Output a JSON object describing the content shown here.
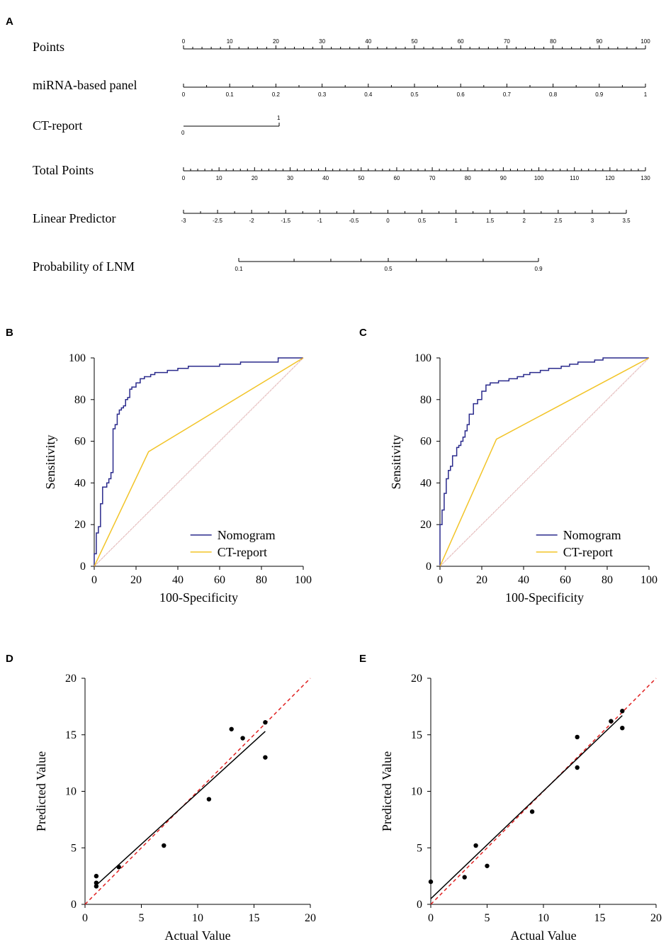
{
  "chart_data": [
    {
      "panel": "A",
      "type": "nomogram",
      "scales": [
        {
          "label": "Points",
          "ticks": [
            "0",
            "10",
            "20",
            "30",
            "40",
            "50",
            "60",
            "70",
            "80",
            "90",
            "100"
          ]
        },
        {
          "label": "miRNA-based panel",
          "ticks": [
            "0",
            "0.1",
            "0.2",
            "0.3",
            "0.4",
            "0.5",
            "0.6",
            "0.7",
            "0.8",
            "0.9",
            "1"
          ]
        },
        {
          "label": "CT-report",
          "ticks": [
            "0",
            "1"
          ]
        },
        {
          "label": "Total Points",
          "ticks": [
            "0",
            "10",
            "20",
            "30",
            "40",
            "50",
            "60",
            "70",
            "80",
            "90",
            "100",
            "110",
            "120",
            "130"
          ]
        },
        {
          "label": "Linear Predictor",
          "ticks": [
            "-3",
            "-2.5",
            "-2",
            "-1.5",
            "-1",
            "-0.5",
            "0",
            "0.5",
            "1",
            "1.5",
            "2",
            "2.5",
            "3",
            "3.5"
          ]
        },
        {
          "label": "Probability of LNM",
          "ticks": [
            "0.1",
            "0.5",
            "0.9"
          ]
        }
      ]
    },
    {
      "panel": "B",
      "type": "line",
      "xlabel": "100-Specificity",
      "ylabel": "Sensitivity",
      "xlim": [
        0,
        100
      ],
      "ylim": [
        0,
        100
      ],
      "xticks": [
        "0",
        "20",
        "40",
        "60",
        "80",
        "100"
      ],
      "yticks": [
        "0",
        "20",
        "40",
        "60",
        "80",
        "100"
      ],
      "legend_position": "bottom-right",
      "series": [
        {
          "name": "Nomogram",
          "color": "#2a2a8c",
          "x": [
            0,
            0,
            1,
            1,
            2,
            2,
            3,
            3,
            4,
            4,
            6,
            6,
            7,
            7,
            8,
            8,
            9,
            9,
            10,
            10,
            11,
            11,
            12,
            12,
            13,
            13,
            14,
            14,
            15,
            15,
            16,
            16,
            17,
            17,
            18,
            18,
            20,
            20,
            22,
            22,
            24,
            24,
            25,
            25,
            27,
            27,
            29,
            29,
            31,
            31,
            35,
            35,
            40,
            40,
            45,
            45,
            48,
            48,
            60,
            60,
            70,
            70,
            88,
            88,
            100
          ],
          "y": [
            0,
            6,
            6,
            16,
            16,
            19,
            19,
            30,
            30,
            38,
            38,
            40,
            40,
            42,
            42,
            45,
            45,
            66,
            66,
            68,
            68,
            73,
            73,
            75,
            75,
            76,
            76,
            77,
            77,
            80,
            80,
            81,
            81,
            85,
            85,
            86,
            86,
            88,
            88,
            90,
            90,
            91,
            91,
            91,
            91,
            92,
            92,
            93,
            93,
            93,
            93,
            94,
            94,
            95,
            95,
            96,
            96,
            96,
            96,
            97,
            97,
            98,
            98,
            100,
            100
          ]
        },
        {
          "name": "CT-report",
          "color": "#f2c428",
          "x": [
            0,
            26,
            100
          ],
          "y": [
            0,
            55,
            100
          ]
        },
        {
          "name": "Reference",
          "color": "#c06060",
          "x": [
            0,
            100
          ],
          "y": [
            0,
            100
          ]
        }
      ]
    },
    {
      "panel": "C",
      "type": "line",
      "xlabel": "100-Specificity",
      "ylabel": "Sensitivity",
      "xlim": [
        0,
        100
      ],
      "ylim": [
        0,
        100
      ],
      "xticks": [
        "0",
        "20",
        "40",
        "60",
        "80",
        "100"
      ],
      "yticks": [
        "0",
        "20",
        "40",
        "60",
        "80",
        "100"
      ],
      "legend_position": "bottom-right",
      "series": [
        {
          "name": "Nomogram",
          "color": "#2a2a8c",
          "x": [
            0,
            0,
            1,
            1,
            2,
            2,
            3,
            3,
            4,
            4,
            5,
            5,
            6,
            6,
            8,
            8,
            9,
            9,
            10,
            10,
            11,
            11,
            12,
            12,
            13,
            13,
            14,
            14,
            16,
            16,
            18,
            18,
            20,
            20,
            22,
            22,
            24,
            24,
            26,
            26,
            28,
            28,
            30,
            30,
            33,
            33,
            37,
            37,
            40,
            40,
            43,
            43,
            48,
            48,
            52,
            52,
            58,
            58,
            62,
            62,
            66,
            66,
            74,
            74,
            78,
            78,
            100
          ],
          "y": [
            0,
            20,
            20,
            27,
            27,
            35,
            35,
            42,
            42,
            46,
            46,
            48,
            48,
            53,
            53,
            57,
            57,
            58,
            58,
            60,
            60,
            62,
            62,
            65,
            65,
            68,
            68,
            73,
            73,
            78,
            78,
            80,
            80,
            84,
            84,
            87,
            87,
            88,
            88,
            88,
            88,
            89,
            89,
            89,
            89,
            90,
            90,
            91,
            91,
            92,
            92,
            93,
            93,
            94,
            94,
            95,
            95,
            96,
            96,
            97,
            97,
            98,
            98,
            99,
            99,
            100,
            100
          ]
        },
        {
          "name": "CT-report",
          "color": "#f2c428",
          "x": [
            0,
            27,
            100
          ],
          "y": [
            0,
            61,
            100
          ]
        },
        {
          "name": "Reference",
          "color": "#c06060",
          "x": [
            0,
            100
          ],
          "y": [
            0,
            100
          ]
        }
      ]
    },
    {
      "panel": "D",
      "type": "scatter",
      "xlabel": "Actual Value",
      "ylabel": "Predicted Value",
      "xlim": [
        0,
        20
      ],
      "ylim": [
        0,
        20
      ],
      "xticks": [
        "0",
        "5",
        "10",
        "15",
        "20"
      ],
      "yticks": [
        "0",
        "5",
        "10",
        "15",
        "20"
      ],
      "points": {
        "x": [
          1,
          1,
          1,
          3,
          7,
          11,
          13,
          14,
          16,
          16
        ],
        "y": [
          2.5,
          1.9,
          1.6,
          3.3,
          5.2,
          9.3,
          15.5,
          14.7,
          16.1,
          13.0
        ]
      },
      "fit_line": {
        "x": [
          1,
          16
        ],
        "y": [
          1.7,
          15.3
        ],
        "color": "#000000"
      },
      "identity_line": {
        "x": [
          0,
          20
        ],
        "y": [
          0,
          20
        ],
        "color": "#e02020"
      }
    },
    {
      "panel": "E",
      "type": "scatter",
      "xlabel": "Actual Value",
      "ylabel": "Predicted Value",
      "xlim": [
        0,
        20
      ],
      "ylim": [
        0,
        20
      ],
      "xticks": [
        "0",
        "5",
        "10",
        "15",
        "20"
      ],
      "yticks": [
        "0",
        "5",
        "10",
        "15",
        "20"
      ],
      "points": {
        "x": [
          0,
          3,
          4,
          5,
          9,
          13,
          13,
          16,
          17,
          17
        ],
        "y": [
          2.0,
          2.4,
          5.2,
          3.4,
          8.2,
          14.8,
          12.1,
          16.2,
          17.1,
          15.6
        ]
      },
      "fit_line": {
        "x": [
          0,
          17
        ],
        "y": [
          0.5,
          16.7
        ],
        "color": "#000000"
      },
      "identity_line": {
        "x": [
          0,
          20
        ],
        "y": [
          0,
          20
        ],
        "color": "#e02020"
      }
    }
  ]
}
